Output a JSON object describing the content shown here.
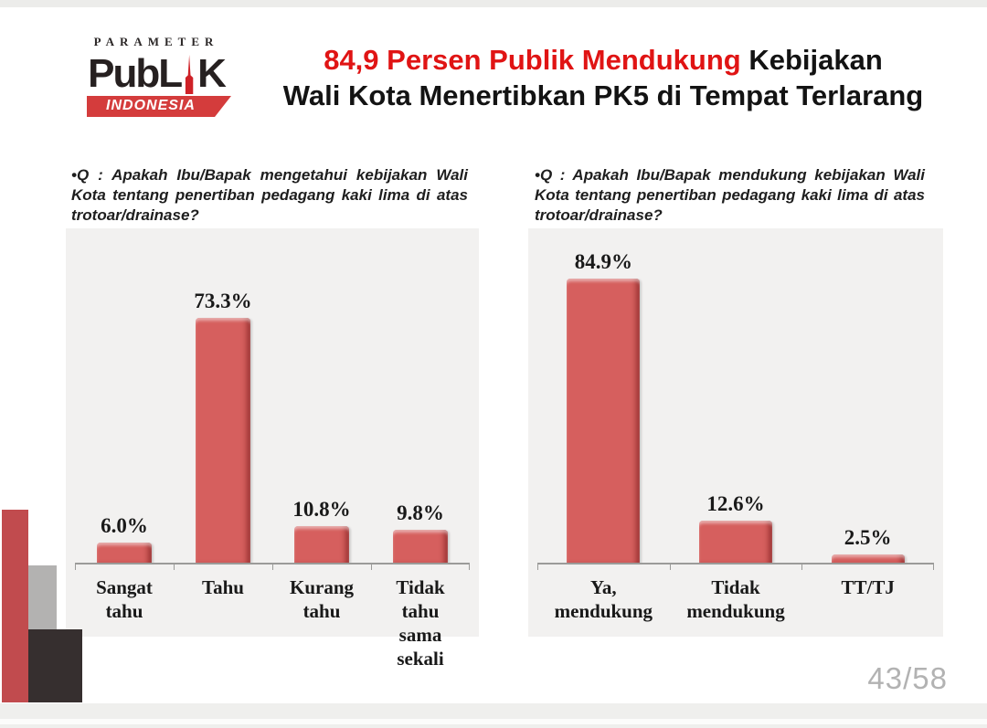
{
  "logo": {
    "top_text": "PARAMETER",
    "name_left": "PubL",
    "name_right": "K",
    "banner_text": "INDONESIA",
    "brand_red": "#d43c3c",
    "monument_red": "#cf2127"
  },
  "title": {
    "highlight": "84,9 Persen Publik Mendukung",
    "line1_rest": " Kebijakan",
    "line2": "Wali Kota Menertibkan PK5 di Tempat Terlarang",
    "highlight_color": "#e01414",
    "text_color": "#131313"
  },
  "chart_data": [
    {
      "type": "bar",
      "question": "•Q : Apakah Ibu/Bapak mengetahui kebijakan Wali Kota tentang penertiban pedagang kaki lima di atas trotoar/drainase?",
      "categories": [
        "Sangat tahu",
        "Tahu",
        "Kurang\ntahu",
        "Tidak tahu\nsama sekali"
      ],
      "values": [
        6.0,
        73.3,
        10.8,
        9.8
      ],
      "value_labels": [
        "6.0%",
        "73.3%",
        "10.8%",
        "9.8%"
      ],
      "ylim": [
        0,
        100
      ],
      "grid": false,
      "legend": "none",
      "bar_color": "#d65f5e",
      "panel_bg": "#f2f1f0",
      "axis_color": "#9b9b99"
    },
    {
      "type": "bar",
      "question": "•Q : Apakah Ibu/Bapak mendukung kebijakan Wali Kota tentang penertiban pedagang kaki lima di atas trotoar/drainase?",
      "categories": [
        "Ya, mendukung",
        "Tidak\nmendukung",
        "TT/TJ"
      ],
      "values": [
        84.9,
        12.6,
        2.5
      ],
      "value_labels": [
        "84.9%",
        "12.6%",
        "2.5%"
      ],
      "ylim": [
        0,
        100
      ],
      "grid": false,
      "legend": "none",
      "bar_color": "#d65f5e",
      "panel_bg": "#f2f1f0",
      "axis_color": "#9b9b99"
    }
  ],
  "page_number": "43/58",
  "decoration_colors": {
    "red": "#c14b4e",
    "gray": "#b3b2b1",
    "dark": "#362f2f"
  }
}
